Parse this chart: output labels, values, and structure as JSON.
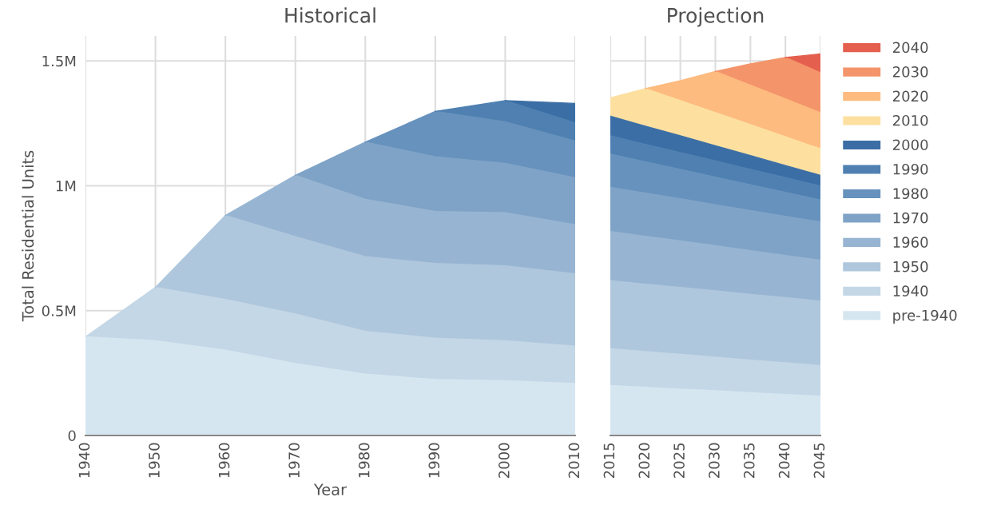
{
  "chart_data": [
    {
      "type": "area",
      "stacked": true,
      "title": "Historical",
      "xlabel": "Year",
      "ylabel": "Total Residential Units",
      "x": [
        1940,
        1950,
        1960,
        1970,
        1980,
        1990,
        2000,
        2010
      ],
      "xlim": [
        1940,
        2010
      ],
      "xticks": [
        1940,
        1950,
        1960,
        1970,
        1980,
        1990,
        2000,
        2010
      ],
      "ylim": [
        0,
        1600000
      ],
      "yticks": [
        0,
        {
          "value": 500000,
          "label": "0.5M"
        },
        {
          "value": 1000000,
          "label": "1M"
        },
        {
          "value": 1500000,
          "label": "1.5M"
        }
      ],
      "grid": true,
      "series": [
        {
          "color": "#d6e6f1",
          "values": [
            395000,
            379000,
            342000,
            288000,
            246000,
            224000,
            219000,
            208000
          ]
        },
        {
          "color": "#c3d7e6",
          "values": [
            0,
            214000,
            203000,
            199000,
            171000,
            166000,
            160000,
            150000
          ]
        },
        {
          "color": "#afc7dd",
          "values": [
            null,
            0,
            336000,
            309000,
            299000,
            299000,
            300000,
            289000
          ]
        },
        {
          "color": "#97b5d2",
          "values": [
            null,
            null,
            0,
            246000,
            230000,
            208000,
            213000,
            197000
          ]
        },
        {
          "color": "#7fa3c7",
          "values": [
            null,
            null,
            null,
            0,
            229000,
            219000,
            198000,
            188000
          ]
        },
        {
          "color": "#6792bd",
          "values": [
            null,
            null,
            null,
            null,
            0,
            182000,
            166000,
            147000
          ]
        },
        {
          "color": "#4f80b1",
          "values": [
            null,
            null,
            null,
            null,
            null,
            0,
            85000,
            73000
          ]
        },
        {
          "color": "#3b6ea5",
          "values": [
            null,
            null,
            null,
            null,
            null,
            null,
            0,
            78000
          ]
        }
      ]
    },
    {
      "type": "area",
      "stacked": true,
      "title": "Projection",
      "x": [
        2015,
        2020,
        2025,
        2030,
        2035,
        2040,
        2045
      ],
      "xlim": [
        2015,
        2045
      ],
      "xticks": [
        2015,
        2020,
        2025,
        2030,
        2035,
        2040,
        2045
      ],
      "ylim": [
        0,
        1600000
      ],
      "yticks": [
        0,
        500000,
        1000000,
        1500000
      ],
      "tick_labels": "x",
      "grid": true,
      "legend": "right",
      "series": [
        {
          "name": "pre-1940",
          "color": "#d6e6f1",
          "values": [
            200000,
            193000,
            186000,
            179000,
            171000,
            164000,
            157000
          ]
        },
        {
          "name": "1940",
          "color": "#c3d7e6",
          "values": [
            147000,
            143000,
            139000,
            135000,
            131000,
            127000,
            123000
          ]
        },
        {
          "name": "1950",
          "color": "#afc7dd",
          "values": [
            273000,
            270000,
            268000,
            265000,
            263000,
            261000,
            258000
          ]
        },
        {
          "name": "1960",
          "color": "#97b5d2",
          "values": [
            197000,
            192000,
            186000,
            181000,
            175000,
            169000,
            164000
          ]
        },
        {
          "name": "1970",
          "color": "#7fa3c7",
          "values": [
            177000,
            173000,
            169000,
            164000,
            161000,
            157000,
            153000
          ]
        },
        {
          "name": "1980",
          "color": "#6792bd",
          "values": [
            133000,
            125000,
            118000,
            111000,
            103000,
            96000,
            88000
          ]
        },
        {
          "name": "1990",
          "color": "#4f80b1",
          "values": [
            73000,
            70000,
            67000,
            65000,
            62000,
            59000,
            56000
          ]
        },
        {
          "name": "2000",
          "color": "#3b6ea5",
          "values": [
            79000,
            73000,
            67000,
            60000,
            55000,
            48000,
            43000
          ]
        },
        {
          "name": "2010",
          "color": "#fde0a0",
          "values": [
            73000,
            150000,
            141000,
            133000,
            124000,
            115000,
            106000
          ]
        },
        {
          "name": "2020",
          "color": "#fdbb7f",
          "values": [
            null,
            0,
            80000,
            165000,
            158000,
            152000,
            145000
          ]
        },
        {
          "name": "2030",
          "color": "#f4946a",
          "values": [
            null,
            null,
            null,
            0,
            85000,
            166000,
            160000
          ]
        },
        {
          "name": "2040",
          "color": "#e45f4e",
          "values": [
            null,
            null,
            null,
            null,
            null,
            0,
            75000
          ]
        }
      ]
    }
  ]
}
